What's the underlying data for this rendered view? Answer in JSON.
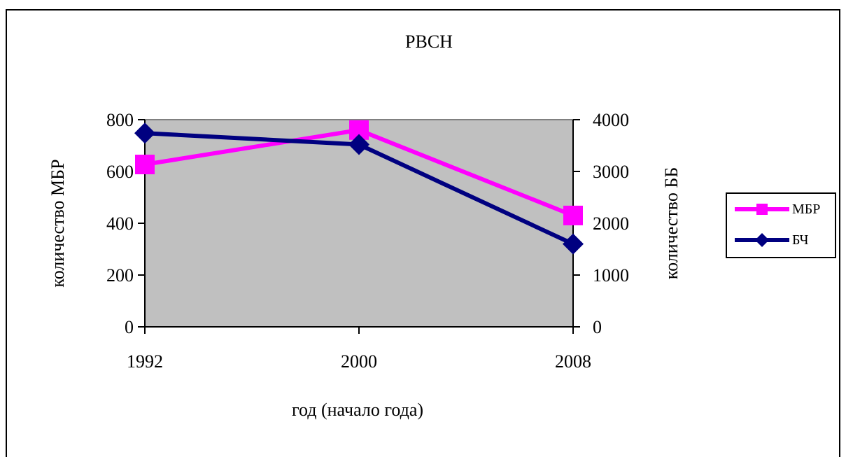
{
  "chart_data": {
    "type": "line",
    "title": "РВСН",
    "xlabel": "год (начало года)",
    "ylabel": "количество МБР",
    "y2label": "количество ББ",
    "categories": [
      "1992",
      "2000",
      "2008"
    ],
    "ylim": [
      0,
      800
    ],
    "y2lim": [
      0,
      4000
    ],
    "yticks": [
      "0",
      "200",
      "400",
      "600",
      "800"
    ],
    "y2ticks": [
      "0",
      "1000",
      "2000",
      "3000",
      "4000"
    ],
    "plot_background": "#c0c0c0",
    "grid": false,
    "legend_position": "right",
    "series": [
      {
        "name": "МБР",
        "axis": "left",
        "color": "#ff00ff",
        "marker": "square",
        "values": [
          627,
          760,
          430
        ]
      },
      {
        "name": "БЧ",
        "axis": "right",
        "color": "#000080",
        "marker": "diamond",
        "values": [
          3740,
          3520,
          1600
        ]
      }
    ]
  }
}
